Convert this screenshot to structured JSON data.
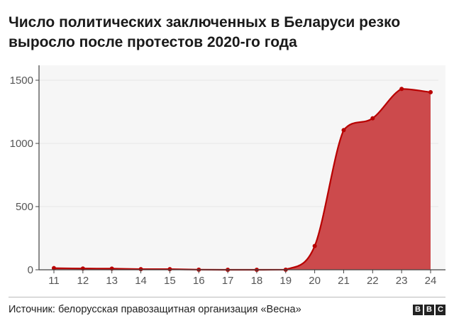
{
  "header": {
    "title": "Число политических заключенных в Беларуси резко выросло после протестов 2020-го года"
  },
  "footer": {
    "source": "Источник: белорусская правозащитная организация «Весна»",
    "logo_text": "BBC"
  },
  "colors": {
    "line": "#b80000",
    "fill": "#cc4a4c",
    "axis": "#444444",
    "grid": "#e6e6e6"
  },
  "chart_data": {
    "type": "area",
    "title": "Число политических заключенных в Беларуси резко выросло после протестов 2020-го года",
    "xlabel": "",
    "ylabel": "",
    "categories": [
      "11",
      "12",
      "13",
      "14",
      "15",
      "16",
      "17",
      "18",
      "19",
      "20",
      "21",
      "22",
      "23",
      "24"
    ],
    "values": [
      13,
      10,
      9,
      5,
      5,
      1,
      0,
      0,
      1,
      188,
      1105,
      1199,
      1431,
      1405
    ],
    "ylim": [
      0,
      1600
    ],
    "yticks": [
      0,
      500,
      1000,
      1500
    ],
    "grid": true,
    "legend": "none"
  }
}
